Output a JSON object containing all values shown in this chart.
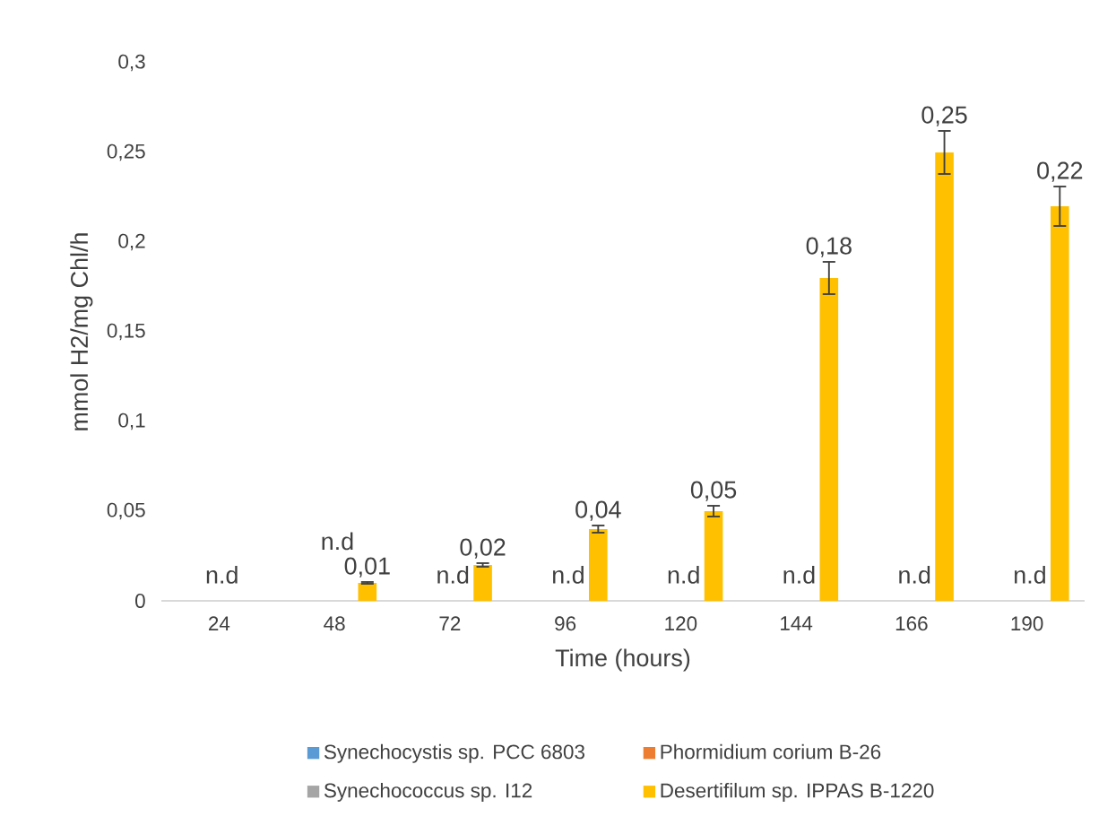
{
  "chart_data": {
    "type": "bar",
    "xlabel": "Time (hours)",
    "ylabel": "mmol H2/mg Chl/h",
    "categories": [
      "24",
      "48",
      "72",
      "96",
      "120",
      "144",
      "166",
      "190"
    ],
    "series": [
      {
        "name": "Synechocystis sp. PCC 6803",
        "color": "#5b9bd5",
        "values": [
          0,
          0,
          0,
          0,
          0,
          0,
          0,
          0
        ]
      },
      {
        "name": "Phormidium corium B-26",
        "color": "#ed7d31",
        "values": [
          0,
          0,
          0,
          0,
          0,
          0,
          0,
          0
        ]
      },
      {
        "name": "Synechococcus sp. I12",
        "color": "#a5a5a5",
        "values": [
          0,
          0,
          0,
          0,
          0,
          0,
          0,
          0
        ],
        "value_labels": [
          "n.d",
          "n.d",
          "n.d",
          "n.d",
          "n.d",
          "n.d",
          "n.d",
          "n.d"
        ]
      },
      {
        "name": "Desertifilum sp. IPPAS B-1220",
        "color": "#ffc000",
        "values": [
          0,
          0.01,
          0.02,
          0.04,
          0.05,
          0.18,
          0.25,
          0.22
        ],
        "errors": [
          null,
          0.0005,
          0.001,
          0.002,
          0.003,
          0.009,
          0.012,
          0.011
        ],
        "value_labels": [
          null,
          "0,01",
          "0,02",
          "0,04",
          "0,05",
          "0,18",
          "0,25",
          "0,22"
        ]
      }
    ],
    "ylim": [
      0,
      0.3
    ],
    "yticks": [
      0,
      {
        "value": 0.05,
        "label": "0,05"
      },
      {
        "value": 0.1,
        "label": "0,1"
      },
      {
        "value": 0.15,
        "label": "0,15"
      },
      {
        "value": 0.2,
        "label": "0,2"
      },
      {
        "value": 0.25,
        "label": "0,25"
      },
      {
        "value": 0.3,
        "label": "0,3"
      }
    ],
    "grid": false,
    "legend": "bottom"
  }
}
